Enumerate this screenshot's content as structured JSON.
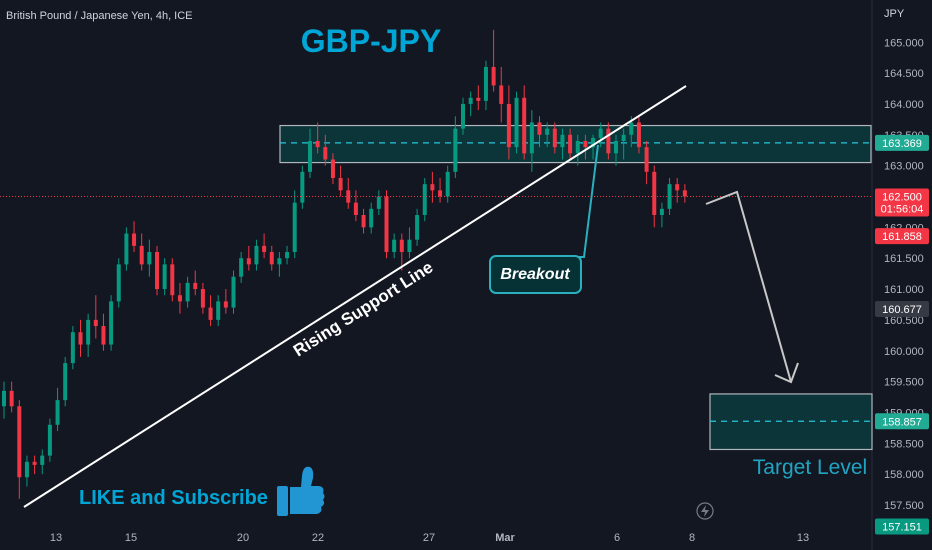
{
  "symbol_label": "British Pound / Japanese Yen, 4h, ICE",
  "currency_label": "JPY",
  "chart_data": {
    "type": "candlestick",
    "title": "GBP-JPY",
    "x_tick_labels": [
      "13",
      "15",
      "20",
      "22",
      "27",
      "Mar",
      "6",
      "8",
      "13"
    ],
    "y_ticks": [
      157.5,
      158.0,
      158.5,
      159.0,
      159.5,
      160.0,
      160.5,
      161.0,
      161.5,
      162.0,
      162.5,
      163.0,
      163.5,
      164.0,
      164.5,
      165.0
    ],
    "y_tick_labels": [
      "157.500",
      "158.000",
      "158.500",
      "159.000",
      "159.500",
      "160.000",
      "160.500",
      "161.000",
      "161.500",
      "162.000",
      "162.500",
      "163.000",
      "163.500",
      "164.000",
      "164.500",
      "165.000"
    ],
    "price_tags": [
      {
        "value": 163.369,
        "label": "163.369",
        "color": "#22ab94"
      },
      {
        "value": 162.5,
        "label": "162.500",
        "sublabel": "01:56:04",
        "color": "#f23645"
      },
      {
        "value": 161.858,
        "label": "161.858",
        "color": "#f23645"
      },
      {
        "value": 160.677,
        "label": "160.677",
        "color": "#363a45"
      },
      {
        "value": 158.857,
        "label": "158.857",
        "color": "#22ab94"
      },
      {
        "value": 157.151,
        "label": "157.151",
        "color": "#089981"
      }
    ],
    "resistance_zone": [
      163.05,
      163.65
    ],
    "target_zone": [
      158.4,
      159.3
    ],
    "candles": [
      [
        159.1,
        159.5,
        158.9,
        159.35
      ],
      [
        159.35,
        159.5,
        159.0,
        159.1
      ],
      [
        159.1,
        159.2,
        157.6,
        157.95
      ],
      [
        157.95,
        158.3,
        157.8,
        158.2
      ],
      [
        158.2,
        158.3,
        158.0,
        158.15
      ],
      [
        158.15,
        158.4,
        158.0,
        158.3
      ],
      [
        158.3,
        158.9,
        158.2,
        158.8
      ],
      [
        158.8,
        159.4,
        158.7,
        159.2
      ],
      [
        159.2,
        159.9,
        159.1,
        159.8
      ],
      [
        159.8,
        160.4,
        159.7,
        160.3
      ],
      [
        160.3,
        160.5,
        159.9,
        160.1
      ],
      [
        160.1,
        160.6,
        159.9,
        160.5
      ],
      [
        160.5,
        160.9,
        160.2,
        160.4
      ],
      [
        160.4,
        160.6,
        160.0,
        160.1
      ],
      [
        160.1,
        160.9,
        160.0,
        160.8
      ],
      [
        160.8,
        161.5,
        160.7,
        161.4
      ],
      [
        161.4,
        162.0,
        161.3,
        161.9
      ],
      [
        161.9,
        162.1,
        161.6,
        161.7
      ],
      [
        161.7,
        161.9,
        161.3,
        161.4
      ],
      [
        161.4,
        161.8,
        161.2,
        161.6
      ],
      [
        161.6,
        161.7,
        160.9,
        161.0
      ],
      [
        161.0,
        161.5,
        160.9,
        161.4
      ],
      [
        161.4,
        161.5,
        160.8,
        160.9
      ],
      [
        160.9,
        161.1,
        160.6,
        160.8
      ],
      [
        160.8,
        161.2,
        160.7,
        161.1
      ],
      [
        161.1,
        161.3,
        160.9,
        161.0
      ],
      [
        161.0,
        161.1,
        160.6,
        160.7
      ],
      [
        160.7,
        160.9,
        160.4,
        160.5
      ],
      [
        160.5,
        160.9,
        160.4,
        160.8
      ],
      [
        160.8,
        161.0,
        160.6,
        160.7
      ],
      [
        160.7,
        161.3,
        160.6,
        161.2
      ],
      [
        161.2,
        161.6,
        161.1,
        161.5
      ],
      [
        161.5,
        161.7,
        161.3,
        161.4
      ],
      [
        161.4,
        161.8,
        161.3,
        161.7
      ],
      [
        161.7,
        161.9,
        161.5,
        161.6
      ],
      [
        161.6,
        161.7,
        161.3,
        161.4
      ],
      [
        161.4,
        161.6,
        161.2,
        161.5
      ],
      [
        161.5,
        161.7,
        161.4,
        161.6
      ],
      [
        161.6,
        162.6,
        161.5,
        162.4
      ],
      [
        162.4,
        163.0,
        162.3,
        162.9
      ],
      [
        162.9,
        163.6,
        162.8,
        163.4
      ],
      [
        163.4,
        163.7,
        163.2,
        163.3
      ],
      [
        163.3,
        163.5,
        163.0,
        163.1
      ],
      [
        163.1,
        163.2,
        162.7,
        162.8
      ],
      [
        162.8,
        163.0,
        162.5,
        162.6
      ],
      [
        162.6,
        162.8,
        162.3,
        162.4
      ],
      [
        162.4,
        162.6,
        162.1,
        162.2
      ],
      [
        162.2,
        162.3,
        161.9,
        162.0
      ],
      [
        162.0,
        162.4,
        161.9,
        162.3
      ],
      [
        162.3,
        162.6,
        162.2,
        162.5
      ],
      [
        162.5,
        162.6,
        161.5,
        161.6
      ],
      [
        161.6,
        161.9,
        161.5,
        161.8
      ],
      [
        161.8,
        161.9,
        161.3,
        161.6
      ],
      [
        161.6,
        162.0,
        161.5,
        161.8
      ],
      [
        161.8,
        162.3,
        161.7,
        162.2
      ],
      [
        162.2,
        162.8,
        162.1,
        162.7
      ],
      [
        162.7,
        162.9,
        162.4,
        162.6
      ],
      [
        162.6,
        162.8,
        162.4,
        162.5
      ],
      [
        162.5,
        163.0,
        162.4,
        162.9
      ],
      [
        162.9,
        163.8,
        162.8,
        163.6
      ],
      [
        163.6,
        164.1,
        163.5,
        164.0
      ],
      [
        164.0,
        164.2,
        163.8,
        164.1
      ],
      [
        164.1,
        164.3,
        163.9,
        164.05
      ],
      [
        164.05,
        164.7,
        163.9,
        164.6
      ],
      [
        164.6,
        165.2,
        164.2,
        164.3
      ],
      [
        164.3,
        164.6,
        163.7,
        164.0
      ],
      [
        164.0,
        164.3,
        163.1,
        163.3
      ],
      [
        163.3,
        164.2,
        163.2,
        164.1
      ],
      [
        164.1,
        164.3,
        163.1,
        163.2
      ],
      [
        163.2,
        163.9,
        162.9,
        163.7
      ],
      [
        163.7,
        163.8,
        163.3,
        163.5
      ],
      [
        163.5,
        163.7,
        163.3,
        163.6
      ],
      [
        163.6,
        163.7,
        163.2,
        163.3
      ],
      [
        163.3,
        163.6,
        163.1,
        163.5
      ],
      [
        163.5,
        163.6,
        163.1,
        163.2
      ],
      [
        163.2,
        163.5,
        163.0,
        163.4
      ],
      [
        163.4,
        163.5,
        163.1,
        163.3
      ],
      [
        163.3,
        163.5,
        163.1,
        163.45
      ],
      [
        163.45,
        163.7,
        163.3,
        163.6
      ],
      [
        163.6,
        163.7,
        163.1,
        163.2
      ],
      [
        163.2,
        163.5,
        163.0,
        163.4
      ],
      [
        163.4,
        163.6,
        163.1,
        163.5
      ],
      [
        163.5,
        163.8,
        163.3,
        163.7
      ],
      [
        163.7,
        163.8,
        163.2,
        163.3
      ],
      [
        163.3,
        163.4,
        162.7,
        162.9
      ],
      [
        162.9,
        163.0,
        162.0,
        162.2
      ],
      [
        162.2,
        162.4,
        162.0,
        162.3
      ],
      [
        162.3,
        162.8,
        162.2,
        162.7
      ],
      [
        162.7,
        162.8,
        162.4,
        162.6
      ],
      [
        162.6,
        162.7,
        162.4,
        162.5
      ]
    ]
  },
  "annotations": {
    "title": "GBP-JPY",
    "breakout": "Breakout",
    "support": "Rising Support Line",
    "target": "Target Level",
    "cta": "LIKE and Subscribe"
  },
  "colors": {
    "up": "#089981",
    "down": "#f23645",
    "title": "#00a6d6",
    "zone_border": "#b2b5be",
    "zone_fill": "#0b3b3d",
    "dashed": "#26c6da",
    "breakout_fill": "#073235",
    "breakout_border": "#2ab0bd"
  },
  "icons": {
    "thumbs_up": "thumbs-up-icon",
    "flash": "flash-icon"
  }
}
